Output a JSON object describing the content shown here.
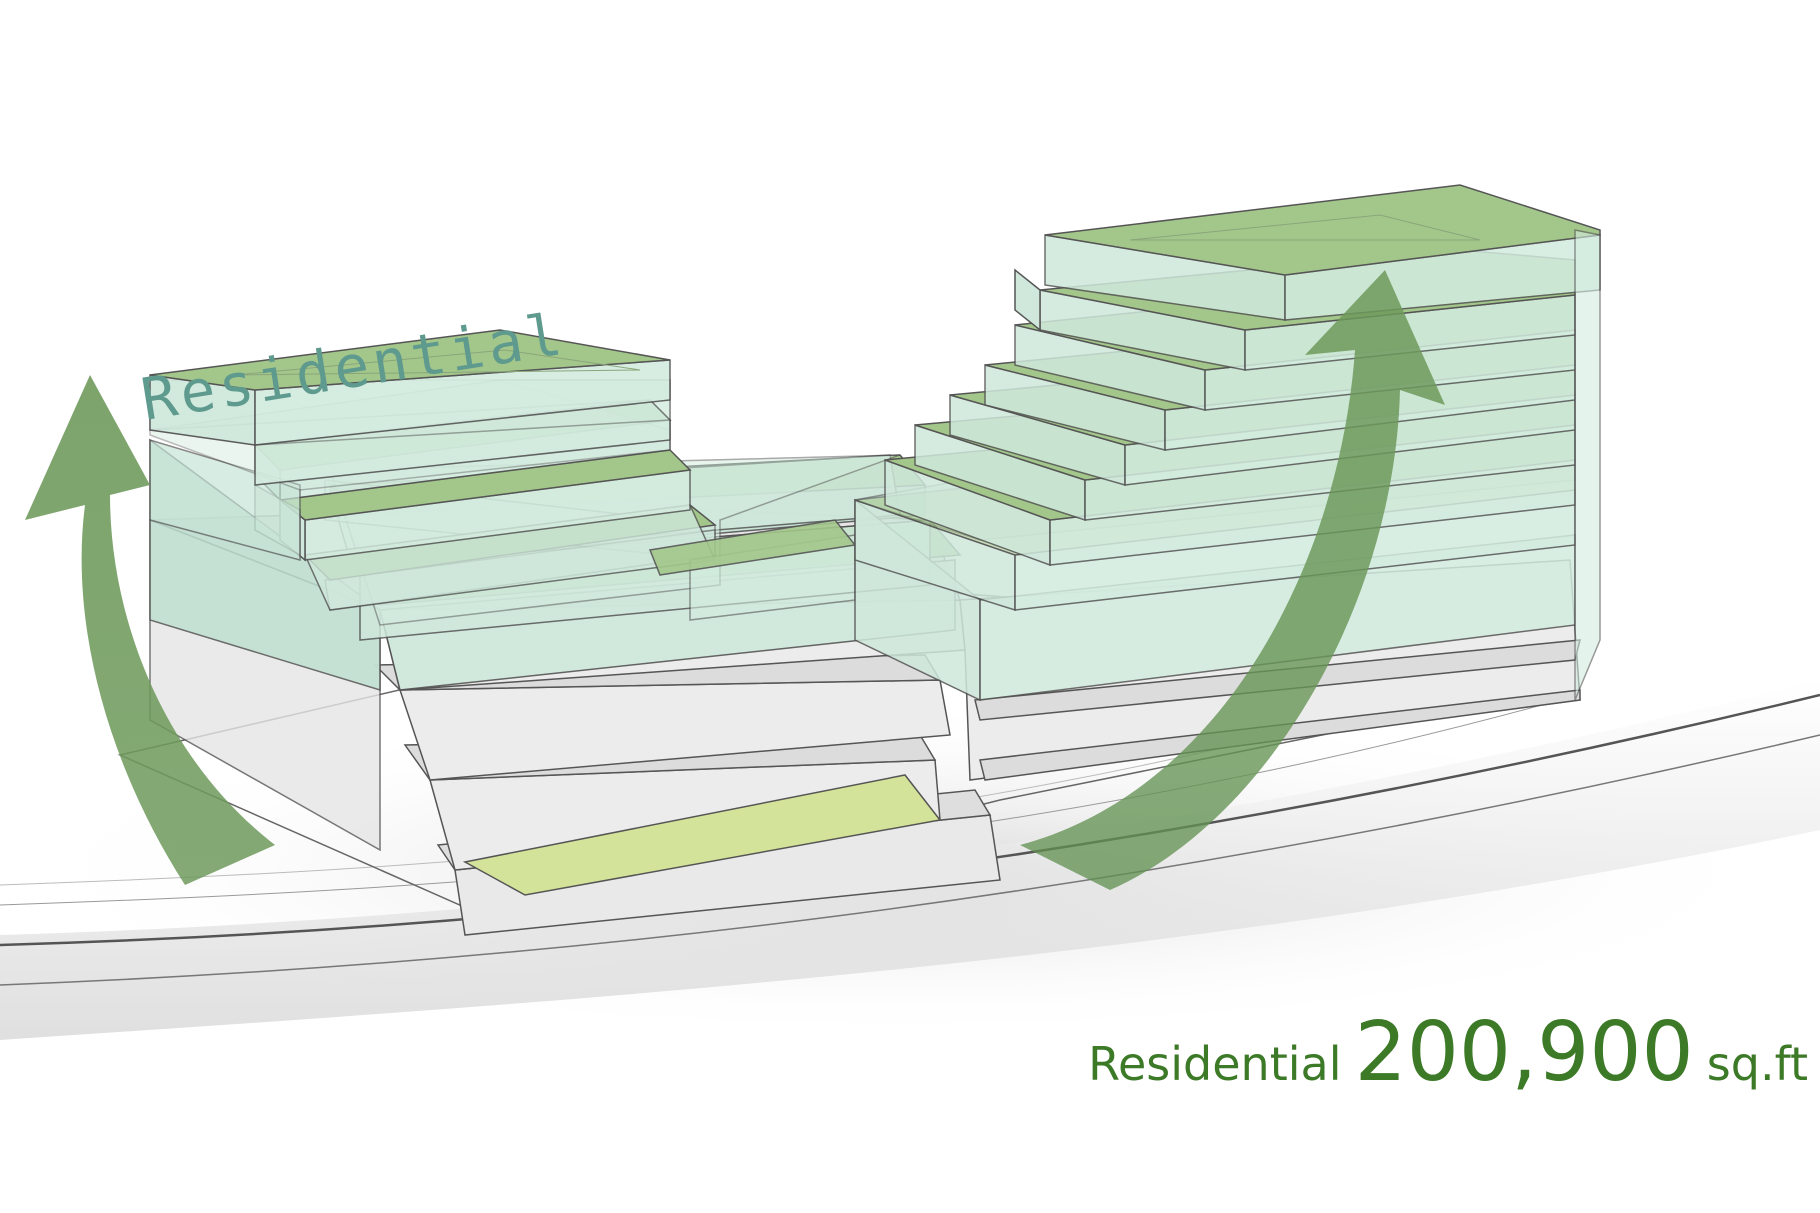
{
  "diagram": {
    "massing_label": "Residential",
    "summary": {
      "label": "Residential",
      "value": "200,900",
      "unit": "sq.ft"
    }
  },
  "colors": {
    "label_teal": "#5f9a8e",
    "caption_green": "#3c7a27",
    "residential_glass": "#bfe0cf",
    "residential_roof": "#a3c78b",
    "courtyard_yellow": "#d4e39a",
    "podium_grey": "#dcdcdc",
    "arrow_green": "#5f8f4f",
    "edge_grey": "#444444"
  }
}
